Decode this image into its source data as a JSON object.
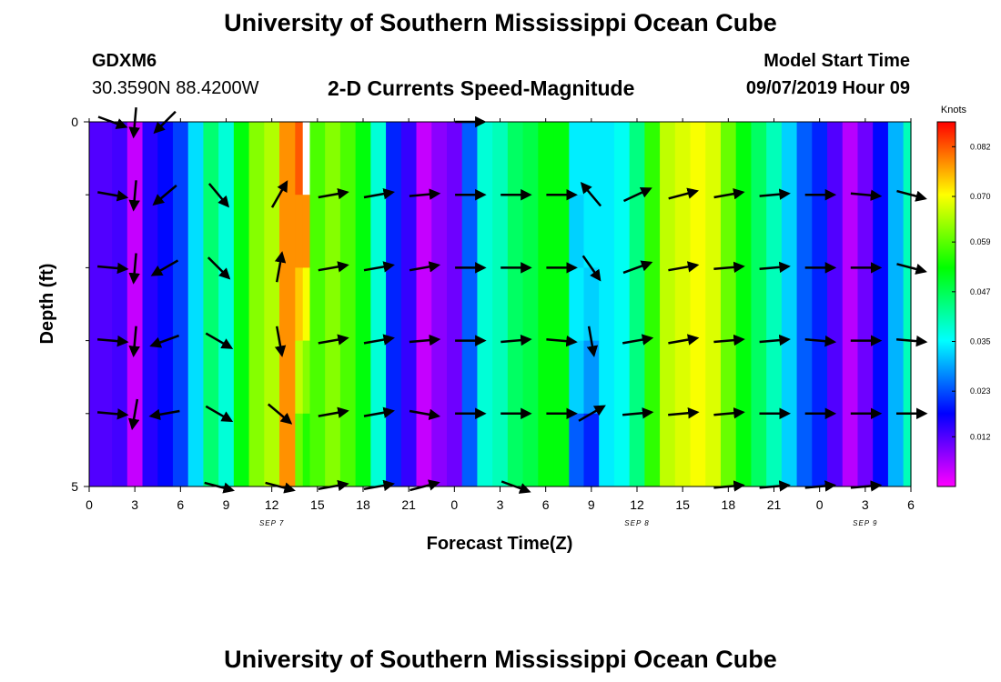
{
  "page": {
    "title_top": "University of Southern Mississippi Ocean Cube",
    "title_bottom": "University of Southern Mississippi Ocean Cube",
    "station_id": "GDXM6",
    "location": "30.3590N 88.4200W",
    "model_start_label": "Model Start Time",
    "model_start_value": "09/07/2019 Hour 09"
  },
  "chart_data": {
    "type": "heatmap",
    "title": "2-D Currents Speed-Magnitude",
    "xlabel": "Forecast Time(Z)",
    "ylabel": "Depth (ft)",
    "colorbar_label": "Knots",
    "x_range_hours": [
      0,
      54
    ],
    "x_ticks": [
      "0",
      "3",
      "6",
      "9",
      "12",
      "15",
      "18",
      "21",
      "0",
      "3",
      "6",
      "9",
      "12",
      "15",
      "18",
      "21",
      "0",
      "3",
      "6"
    ],
    "date_labels": [
      {
        "text": "SEP 7",
        "hour": 12
      },
      {
        "text": "SEP 8",
        "hour": 36
      },
      {
        "text": "SEP 9",
        "hour": 51
      }
    ],
    "y_range": [
      0,
      5
    ],
    "y_ticks": [
      "0",
      "5"
    ],
    "depth_levels": 5,
    "colorbar": {
      "min": 0.0,
      "max": 0.088,
      "ticks": [
        "0.082",
        "0.070",
        "0.059",
        "0.047",
        "0.035",
        "0.023",
        "0.012"
      ],
      "tick_values": [
        0.082,
        0.07,
        0.059,
        0.047,
        0.035,
        0.023,
        0.012
      ]
    },
    "speed_by_hour_knots": [
      0.012,
      0.012,
      0.013,
      0.004,
      0.015,
      0.018,
      0.022,
      0.033,
      0.045,
      0.038,
      0.052,
      0.062,
      0.065,
      0.078,
      0.07,
      0.058,
      0.062,
      0.058,
      0.052,
      0.038,
      0.02,
      0.014,
      0.004,
      0.008,
      0.01,
      0.024,
      0.038,
      0.04,
      0.046,
      0.048,
      0.052,
      0.052,
      0.044,
      0.042,
      0.034,
      0.036,
      0.044,
      0.056,
      0.066,
      0.068,
      0.07,
      0.068,
      0.06,
      0.052,
      0.046,
      0.04,
      0.032,
      0.024,
      0.02,
      0.012,
      0.005,
      0.01,
      0.018,
      0.03,
      0.04
    ],
    "depth_variations": [
      {
        "hour": 13.5,
        "speeds": [
          0.082,
          0.078,
          0.074,
          0.066,
          0.06
        ]
      },
      {
        "hour": 14.0,
        "speeds": [
          null,
          0.078,
          0.07,
          0.062,
          0.055
        ]
      },
      {
        "hour": 32.0,
        "speeds": [
          0.034,
          0.032,
          0.034,
          0.032,
          0.024
        ]
      },
      {
        "hour": 33.0,
        "speeds": [
          0.034,
          0.034,
          0.032,
          0.028,
          0.02
        ]
      }
    ],
    "vector_times_hours": [
      1.5,
      3,
      5,
      8.5,
      12.5,
      16,
      19,
      22,
      25,
      28,
      31,
      33,
      36,
      39,
      42,
      45,
      48,
      51,
      54
    ],
    "vector_depths": [
      0,
      1,
      2,
      3,
      4,
      5
    ],
    "vector_directions_deg": [
      [
        -20,
        -95,
        -135,
        null,
        null,
        null,
        null,
        null,
        0,
        null,
        null,
        null,
        null,
        null,
        null,
        null,
        null,
        null,
        null
      ],
      [
        -10,
        -95,
        -140,
        -50,
        60,
        10,
        10,
        5,
        0,
        0,
        0,
        130,
        25,
        15,
        10,
        5,
        0,
        -5,
        -15
      ],
      [
        -5,
        -95,
        -150,
        -45,
        80,
        10,
        10,
        10,
        0,
        0,
        0,
        -55,
        20,
        10,
        5,
        5,
        0,
        0,
        -15
      ],
      [
        -5,
        -95,
        -160,
        -30,
        -80,
        10,
        10,
        5,
        0,
        5,
        -5,
        -80,
        10,
        10,
        5,
        5,
        -5,
        0,
        -5
      ],
      [
        -5,
        -100,
        -170,
        -30,
        -40,
        10,
        10,
        -10,
        0,
        0,
        0,
        30,
        5,
        5,
        5,
        0,
        0,
        0,
        0
      ],
      [
        null,
        null,
        null,
        -15,
        -15,
        10,
        10,
        15,
        null,
        -20,
        null,
        null,
        null,
        null,
        5,
        5,
        5,
        5,
        null
      ]
    ]
  }
}
